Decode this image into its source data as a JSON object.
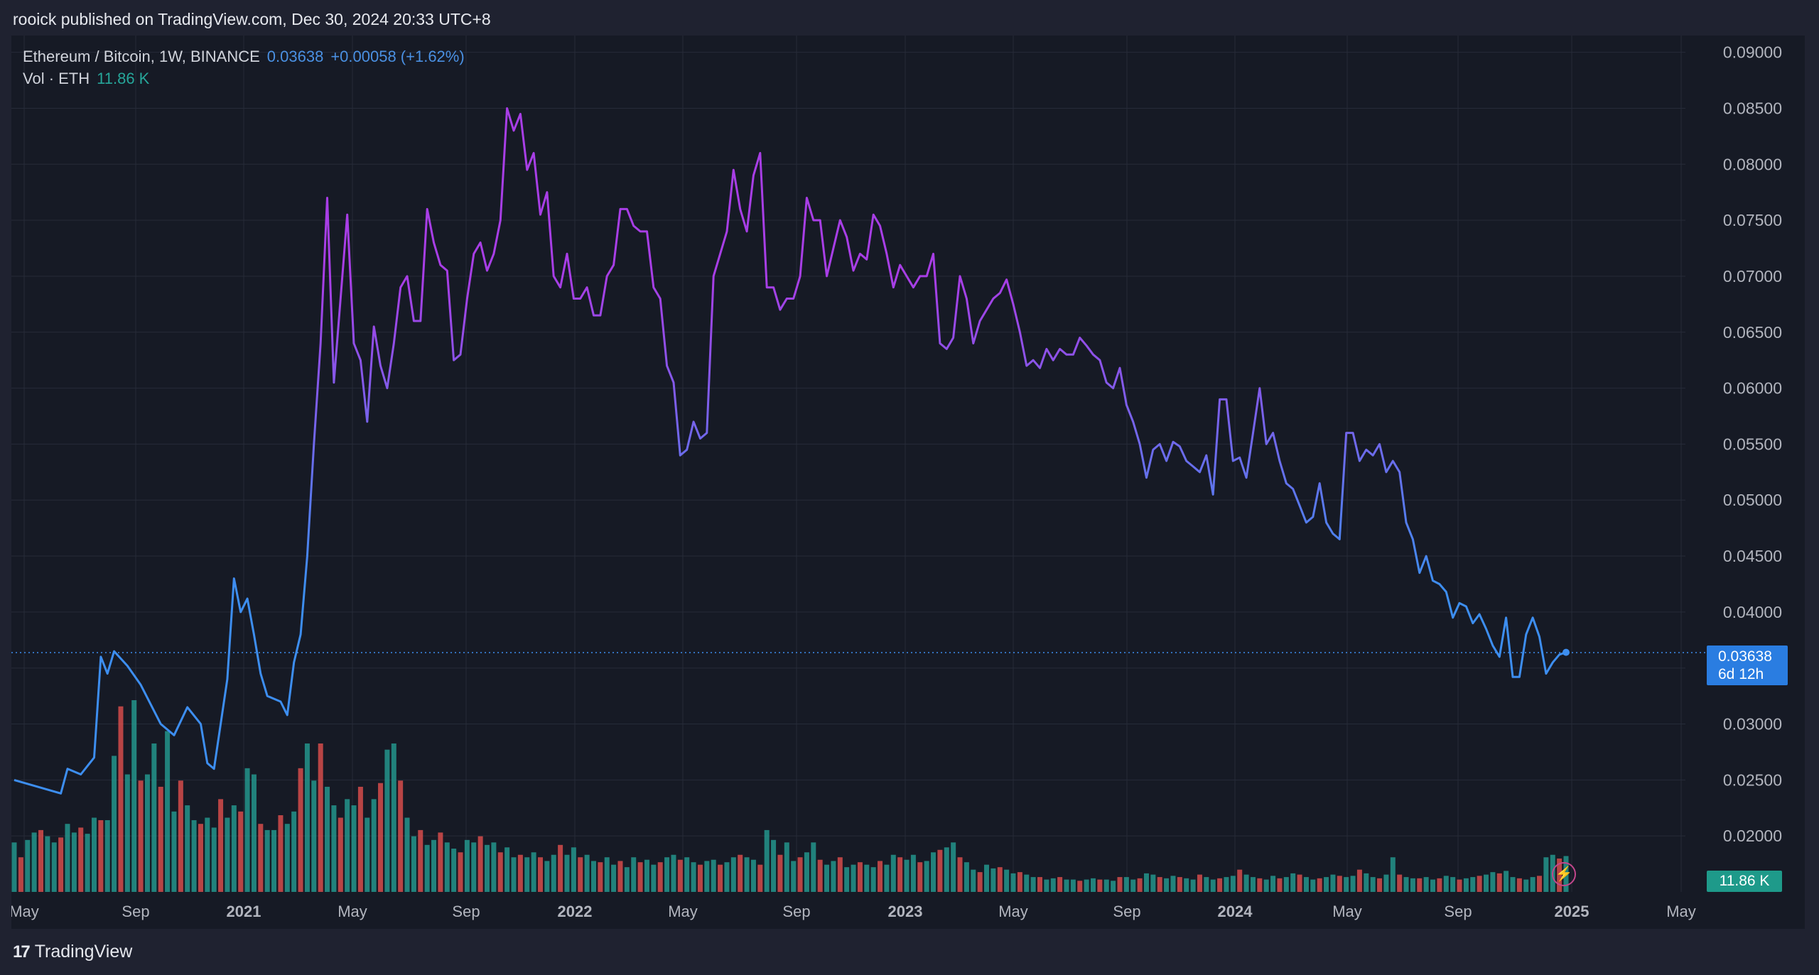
{
  "header": {
    "text": "rooick published on TradingView.com, Dec 30, 2024 20:33 UTC+8"
  },
  "legend": {
    "symbol": "Ethereum / Bitcoin, 1W, BINANCE",
    "price": "0.03638",
    "change": "+0.00058 (+1.62%)",
    "vol_label": "Vol · ETH",
    "vol_value": "11.86 K"
  },
  "price_tag": {
    "price": "0.03638",
    "countdown": "6d 12h"
  },
  "vol_tag": {
    "value": "11.86 K"
  },
  "footer": {
    "brand": "TradingView",
    "logo": "17"
  },
  "colors": {
    "line_start": "#3d8ef0",
    "line_end": "#a83ee6",
    "vol_up": "#26a69a",
    "vol_down": "#ef5350",
    "background": "#161a25",
    "grid": "#262b38"
  },
  "chart_data": {
    "type": "line",
    "title": "Ethereum / Bitcoin, 1W, BINANCE",
    "ylim": [
      0.015,
      0.0915
    ],
    "y_ticks": [
      "0.09000",
      "0.08500",
      "0.08000",
      "0.07500",
      "0.07000",
      "0.06500",
      "0.06000",
      "0.05500",
      "0.05000",
      "0.04500",
      "0.04000",
      "0.03500",
      "0.03000",
      "0.02500",
      "0.02000"
    ],
    "x_ticks": [
      "May",
      "Sep",
      "2021",
      "May",
      "Sep",
      "2022",
      "May",
      "Sep",
      "2023",
      "May",
      "Sep",
      "2024",
      "May",
      "Sep",
      "2025",
      "May"
    ],
    "x_ticks_bold": [
      false,
      false,
      true,
      false,
      false,
      true,
      false,
      false,
      true,
      false,
      false,
      true,
      false,
      false,
      true,
      false
    ],
    "series": [
      {
        "points": [
          [
            0,
            0.025
          ],
          [
            7,
            0.0238
          ],
          [
            8,
            0.026
          ],
          [
            10,
            0.0255
          ],
          [
            12,
            0.027
          ],
          [
            13,
            0.036
          ],
          [
            14,
            0.0345
          ],
          [
            15,
            0.0365
          ],
          [
            17,
            0.0352
          ],
          [
            19,
            0.0335
          ],
          [
            22,
            0.03
          ],
          [
            24,
            0.029
          ],
          [
            26,
            0.0315
          ],
          [
            28,
            0.03
          ],
          [
            29,
            0.0265
          ],
          [
            30,
            0.026
          ],
          [
            32,
            0.034
          ],
          [
            33,
            0.043
          ],
          [
            34,
            0.04
          ],
          [
            35,
            0.0412
          ],
          [
            36,
            0.038
          ],
          [
            37,
            0.0345
          ],
          [
            38,
            0.0325
          ],
          [
            40,
            0.032
          ],
          [
            41,
            0.0308
          ],
          [
            42,
            0.0355
          ],
          [
            43,
            0.038
          ],
          [
            44,
            0.045
          ],
          [
            45,
            0.055
          ],
          [
            46,
            0.064
          ],
          [
            47,
            0.077
          ],
          [
            48,
            0.0605
          ],
          [
            49,
            0.068
          ],
          [
            50,
            0.0755
          ],
          [
            51,
            0.064
          ],
          [
            52,
            0.0625
          ],
          [
            53,
            0.057
          ],
          [
            54,
            0.0655
          ],
          [
            55,
            0.062
          ],
          [
            56,
            0.06
          ],
          [
            57,
            0.064
          ],
          [
            58,
            0.069
          ],
          [
            59,
            0.07
          ],
          [
            60,
            0.066
          ],
          [
            61,
            0.066
          ],
          [
            62,
            0.076
          ],
          [
            63,
            0.073
          ],
          [
            64,
            0.071
          ],
          [
            65,
            0.0705
          ],
          [
            66,
            0.0625
          ],
          [
            67,
            0.063
          ],
          [
            68,
            0.068
          ],
          [
            69,
            0.072
          ],
          [
            70,
            0.073
          ],
          [
            71,
            0.0705
          ],
          [
            72,
            0.072
          ],
          [
            73,
            0.075
          ],
          [
            74,
            0.085
          ],
          [
            75,
            0.083
          ],
          [
            76,
            0.0845
          ],
          [
            77,
            0.0795
          ],
          [
            78,
            0.081
          ],
          [
            79,
            0.0755
          ],
          [
            80,
            0.0775
          ],
          [
            81,
            0.07
          ],
          [
            82,
            0.069
          ],
          [
            83,
            0.072
          ],
          [
            84,
            0.068
          ],
          [
            85,
            0.068
          ],
          [
            86,
            0.069
          ],
          [
            87,
            0.0665
          ],
          [
            88,
            0.0665
          ],
          [
            89,
            0.07
          ],
          [
            90,
            0.071
          ],
          [
            91,
            0.076
          ],
          [
            92,
            0.076
          ],
          [
            93,
            0.0745
          ],
          [
            94,
            0.074
          ],
          [
            95,
            0.074
          ],
          [
            96,
            0.069
          ],
          [
            97,
            0.068
          ],
          [
            98,
            0.062
          ],
          [
            99,
            0.0605
          ],
          [
            100,
            0.054
          ],
          [
            101,
            0.0545
          ],
          [
            102,
            0.057
          ],
          [
            103,
            0.0555
          ],
          [
            104,
            0.056
          ],
          [
            105,
            0.07
          ],
          [
            106,
            0.072
          ],
          [
            107,
            0.074
          ],
          [
            108,
            0.0795
          ],
          [
            109,
            0.076
          ],
          [
            110,
            0.074
          ],
          [
            111,
            0.079
          ],
          [
            112,
            0.081
          ],
          [
            113,
            0.069
          ],
          [
            114,
            0.069
          ],
          [
            115,
            0.067
          ],
          [
            116,
            0.068
          ],
          [
            117,
            0.068
          ],
          [
            118,
            0.07
          ],
          [
            119,
            0.077
          ],
          [
            120,
            0.075
          ],
          [
            121,
            0.075
          ],
          [
            122,
            0.07
          ],
          [
            123,
            0.0725
          ],
          [
            124,
            0.075
          ],
          [
            125,
            0.0735
          ],
          [
            126,
            0.0705
          ],
          [
            127,
            0.072
          ],
          [
            128,
            0.0715
          ],
          [
            129,
            0.0755
          ],
          [
            130,
            0.0745
          ],
          [
            131,
            0.072
          ],
          [
            132,
            0.069
          ],
          [
            133,
            0.071
          ],
          [
            134,
            0.07
          ],
          [
            135,
            0.069
          ],
          [
            136,
            0.07
          ],
          [
            137,
            0.07
          ],
          [
            138,
            0.072
          ],
          [
            139,
            0.064
          ],
          [
            140,
            0.0635
          ],
          [
            141,
            0.0645
          ],
          [
            142,
            0.07
          ],
          [
            143,
            0.068
          ],
          [
            144,
            0.064
          ],
          [
            145,
            0.066
          ],
          [
            146,
            0.067
          ],
          [
            147,
            0.068
          ],
          [
            148,
            0.0685
          ],
          [
            149,
            0.0697
          ],
          [
            150,
            0.0675
          ],
          [
            151,
            0.065
          ],
          [
            152,
            0.062
          ],
          [
            153,
            0.0625
          ],
          [
            154,
            0.0618
          ],
          [
            155,
            0.0635
          ],
          [
            156,
            0.0625
          ],
          [
            157,
            0.0635
          ],
          [
            158,
            0.063
          ],
          [
            159,
            0.063
          ],
          [
            160,
            0.0645
          ],
          [
            161,
            0.0638
          ],
          [
            162,
            0.063
          ],
          [
            163,
            0.0625
          ],
          [
            164,
            0.0605
          ],
          [
            165,
            0.06
          ],
          [
            166,
            0.0618
          ],
          [
            167,
            0.0585
          ],
          [
            168,
            0.057
          ],
          [
            169,
            0.055
          ],
          [
            170,
            0.052
          ],
          [
            171,
            0.0545
          ],
          [
            172,
            0.055
          ],
          [
            173,
            0.0535
          ],
          [
            174,
            0.0552
          ],
          [
            175,
            0.0548
          ],
          [
            176,
            0.0535
          ],
          [
            177,
            0.053
          ],
          [
            178,
            0.0525
          ],
          [
            179,
            0.054
          ],
          [
            180,
            0.0505
          ],
          [
            181,
            0.059
          ],
          [
            182,
            0.059
          ],
          [
            183,
            0.0535
          ],
          [
            184,
            0.0538
          ],
          [
            185,
            0.052
          ],
          [
            186,
            0.056
          ],
          [
            187,
            0.06
          ],
          [
            188,
            0.055
          ],
          [
            189,
            0.056
          ],
          [
            190,
            0.0535
          ],
          [
            191,
            0.0515
          ],
          [
            192,
            0.051
          ],
          [
            193,
            0.0495
          ],
          [
            194,
            0.048
          ],
          [
            195,
            0.0485
          ],
          [
            196,
            0.0515
          ],
          [
            197,
            0.048
          ],
          [
            198,
            0.047
          ],
          [
            199,
            0.0465
          ],
          [
            200,
            0.056
          ],
          [
            201,
            0.056
          ],
          [
            202,
            0.0535
          ],
          [
            203,
            0.0545
          ],
          [
            204,
            0.054
          ],
          [
            205,
            0.055
          ],
          [
            206,
            0.0525
          ],
          [
            207,
            0.0535
          ],
          [
            208,
            0.0525
          ],
          [
            209,
            0.048
          ],
          [
            210,
            0.0465
          ],
          [
            211,
            0.0435
          ],
          [
            212,
            0.045
          ],
          [
            213,
            0.0428
          ],
          [
            214,
            0.0425
          ],
          [
            215,
            0.0418
          ],
          [
            216,
            0.0395
          ],
          [
            217,
            0.0408
          ],
          [
            218,
            0.0405
          ],
          [
            219,
            0.039
          ],
          [
            220,
            0.0398
          ],
          [
            221,
            0.0385
          ],
          [
            222,
            0.037
          ],
          [
            223,
            0.036
          ],
          [
            224,
            0.0395
          ],
          [
            225,
            0.0342
          ],
          [
            226,
            0.0342
          ],
          [
            227,
            0.038
          ],
          [
            228,
            0.0395
          ],
          [
            229,
            0.0378
          ],
          [
            230,
            0.0345
          ],
          [
            231,
            0.0355
          ],
          [
            232,
            0.0362
          ],
          [
            233,
            0.0364
          ]
        ]
      }
    ],
    "volume": {
      "values": [
        40,
        28,
        42,
        48,
        50,
        45,
        40,
        44,
        55,
        48,
        52,
        47,
        60,
        58,
        58,
        110,
        150,
        95,
        155,
        90,
        95,
        120,
        85,
        130,
        65,
        90,
        70,
        58,
        55,
        60,
        52,
        75,
        60,
        70,
        65,
        100,
        95,
        55,
        50,
        50,
        62,
        55,
        65,
        100,
        120,
        90,
        120,
        85,
        70,
        60,
        75,
        70,
        85,
        60,
        75,
        88,
        115,
        120,
        90,
        60,
        45,
        50,
        38,
        42,
        48,
        40,
        35,
        32,
        42,
        40,
        45,
        38,
        40,
        32,
        36,
        28,
        30,
        28,
        32,
        28,
        25,
        30,
        38,
        30,
        36,
        28,
        30,
        25,
        24,
        28,
        22,
        25,
        20,
        28,
        24,
        26,
        22,
        24,
        28,
        30,
        26,
        28,
        24,
        22,
        25,
        26,
        22,
        24,
        28,
        30,
        28,
        26,
        22,
        50,
        42,
        30,
        40,
        25,
        28,
        32,
        40,
        26,
        22,
        25,
        28,
        20,
        22,
        24,
        22,
        20,
        25,
        22,
        30,
        28,
        26,
        30,
        24,
        25,
        32,
        34,
        36,
        40,
        28,
        24,
        18,
        16,
        22,
        19,
        20,
        18,
        15,
        16,
        14,
        12,
        12,
        10,
        11,
        12,
        10,
        10,
        9,
        10,
        11,
        10,
        10,
        9,
        12,
        12,
        10,
        11,
        15,
        14,
        12,
        11,
        13,
        12,
        11,
        10,
        14,
        12,
        10,
        11,
        12,
        13,
        18,
        14,
        12,
        11,
        10,
        13,
        11,
        12,
        15,
        14,
        12,
        10,
        11,
        12,
        14,
        13,
        12,
        13,
        18,
        15,
        12,
        11,
        14,
        28,
        14,
        12,
        11,
        11,
        12,
        10,
        11,
        13,
        12,
        10,
        11,
        12,
        13,
        14,
        16,
        15,
        17,
        12,
        11,
        10,
        12,
        13,
        28,
        30,
        27,
        29,
        30,
        18,
        12
      ]
    }
  }
}
